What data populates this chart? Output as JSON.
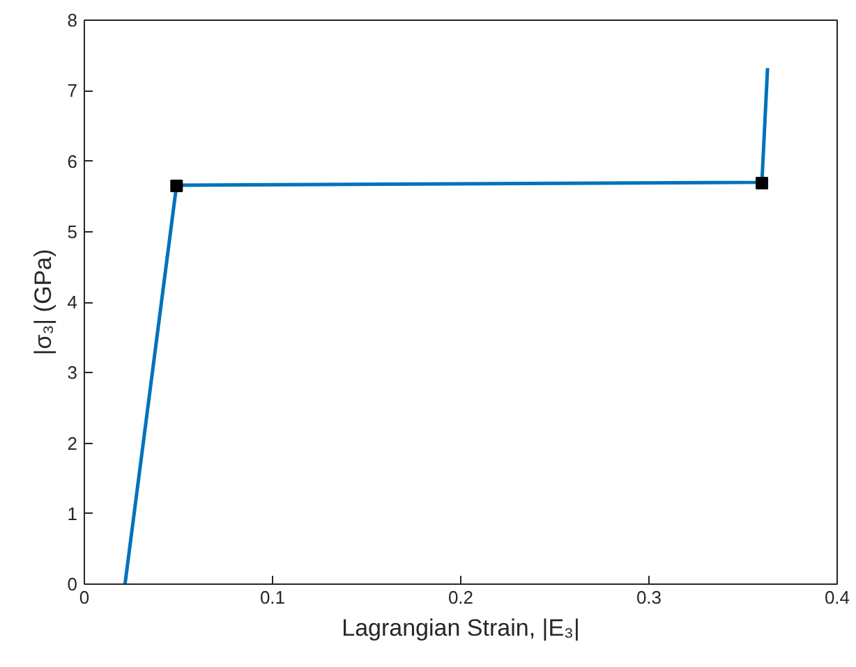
{
  "chart_data": {
    "type": "line",
    "xlabel": "Lagrangian Strain, |E₃|",
    "ylabel": "|σ₃| (GPa)",
    "xlim": [
      0,
      0.4
    ],
    "ylim": [
      0,
      8
    ],
    "xticks": [
      0,
      0.1,
      0.2,
      0.3,
      0.4
    ],
    "yticks": [
      0,
      1,
      2,
      3,
      4,
      5,
      6,
      7,
      8
    ],
    "grid": false,
    "series": [
      {
        "color": "#0072bd",
        "x": [
          0.0216,
          0.049,
          0.36,
          0.363
        ],
        "values": [
          0,
          5.66,
          5.7,
          7.32
        ],
        "marker": "none"
      },
      {
        "type": "scatter",
        "color": "#000000",
        "x": [
          0.049,
          0.36
        ],
        "values": [
          5.65,
          5.69
        ],
        "marker": "square"
      }
    ]
  }
}
